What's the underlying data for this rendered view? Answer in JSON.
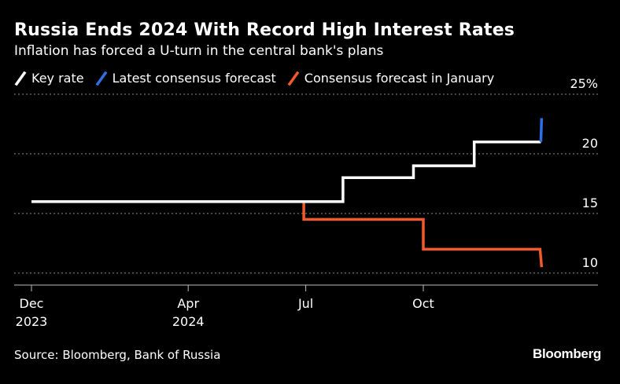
{
  "title": "Russia Ends 2024 With Record High Interest Rates",
  "subtitle": "Inflation has forced a U-turn in the central bank's plans",
  "source": "Source: Bloomberg, Bank of Russia",
  "brand": "Bloomberg",
  "colors": {
    "background": "#000000",
    "key_rate": "#ffffff",
    "latest_forecast": "#2f6fe6",
    "january_forecast": "#f05a2e",
    "grid": "#8a8a8a",
    "text": "#ffffff"
  },
  "chart_data": {
    "type": "line",
    "title": "Russia Ends 2024 With Record High Interest Rates",
    "subtitle": "Inflation has forced a U-turn in the central bank's plans",
    "xlabel": "",
    "ylabel": "",
    "x_unit": "months since Dec 1, 2023",
    "xlim": [
      -0.1,
      13.2
    ],
    "ylim": [
      8.8,
      25
    ],
    "y_ticks": [
      {
        "value": 25,
        "label": "25%"
      },
      {
        "value": 20,
        "label": "20"
      },
      {
        "value": 15,
        "label": "15"
      },
      {
        "value": 10,
        "label": "10"
      }
    ],
    "x_ticks": [
      {
        "value": 0,
        "label": "Dec",
        "sublabel": "2023"
      },
      {
        "value": 4,
        "label": "Apr",
        "sublabel": "2024"
      },
      {
        "value": 7,
        "label": "Jul",
        "sublabel": ""
      },
      {
        "value": 10,
        "label": "Oct",
        "sublabel": ""
      }
    ],
    "grid": "horizontal dotted",
    "legend_position": "top-left",
    "series": [
      {
        "name": "Key rate",
        "color": "#ffffff",
        "step": true,
        "points": [
          [
            0,
            16
          ],
          [
            7.95,
            16
          ],
          [
            7.95,
            18
          ],
          [
            9.75,
            18
          ],
          [
            9.75,
            19
          ],
          [
            11.3,
            19
          ],
          [
            11.3,
            21
          ],
          [
            13.0,
            21
          ]
        ]
      },
      {
        "name": "Latest consensus forecast",
        "color": "#2f6fe6",
        "step": false,
        "points": [
          [
            13.0,
            21
          ],
          [
            13.02,
            23
          ]
        ]
      },
      {
        "name": "Consensus forecast in January",
        "color": "#f05a2e",
        "step": true,
        "points": [
          [
            6.95,
            16
          ],
          [
            6.95,
            14.5
          ],
          [
            10.0,
            14.5
          ],
          [
            10.0,
            12
          ],
          [
            12.98,
            12
          ],
          [
            13.02,
            10.5
          ]
        ]
      }
    ]
  }
}
